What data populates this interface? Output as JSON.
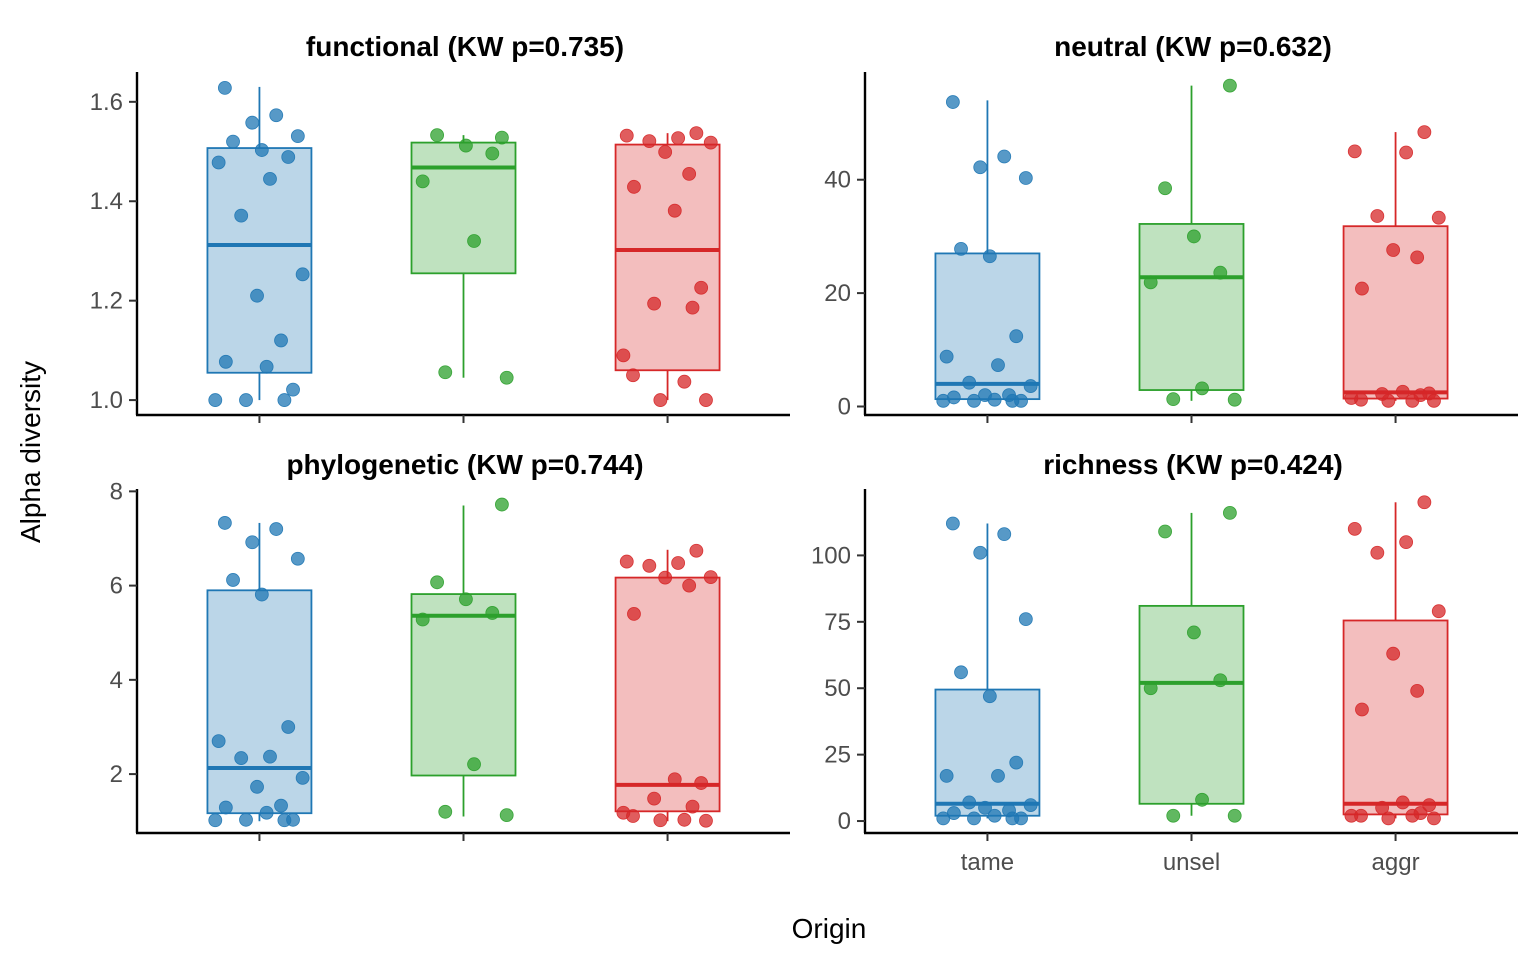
{
  "axis_titles": {
    "x": "Origin",
    "y": "Alpha diversity"
  },
  "colors": {
    "tame": "#1f77b4",
    "unsel": "#2ca02c",
    "aggr": "#d62728",
    "axis": "#000000",
    "tick_text": "#4d4d4d"
  },
  "chart_data": [
    {
      "type": "box",
      "title": "functional (KW p=0.735)",
      "categories": [
        "tame",
        "unsel",
        "aggr"
      ],
      "ylim": [
        0.97,
        1.66
      ],
      "yticks": [
        1.0,
        1.2,
        1.4,
        1.6
      ],
      "ytick_labels": [
        "1.0",
        "1.2",
        "1.4",
        "1.6"
      ],
      "show_x_labels": false,
      "boxes": [
        {
          "group": "tame",
          "min": 1.0,
          "q1": 1.055,
          "median": 1.312,
          "q3": 1.507,
          "max": 1.63
        },
        {
          "group": "unsel",
          "min": 1.045,
          "q1": 1.255,
          "median": 1.468,
          "q3": 1.518,
          "max": 1.533
        },
        {
          "group": "aggr",
          "min": 1.0,
          "q1": 1.06,
          "median": 1.302,
          "q3": 1.514,
          "max": 1.537
        }
      ],
      "points": [
        {
          "group": "tame",
          "values": [
            1.628,
            1.573,
            1.558,
            1.531,
            1.52,
            1.503,
            1.489,
            1.478,
            1.445,
            1.371,
            1.253,
            1.21,
            1.12,
            1.077,
            1.067,
            1.021,
            1.0,
            1.0,
            1.0
          ]
        },
        {
          "group": "unsel",
          "values": [
            1.528,
            1.533,
            1.512,
            1.496,
            1.44,
            1.32,
            1.056,
            1.045
          ]
        },
        {
          "group": "aggr",
          "values": [
            1.537,
            1.532,
            1.527,
            1.521,
            1.518,
            1.499,
            1.455,
            1.429,
            1.381,
            1.226,
            1.194,
            1.186,
            1.09,
            1.05,
            1.037,
            1.0,
            1.0
          ]
        }
      ]
    },
    {
      "type": "box",
      "title": "neutral (KW p=0.632)",
      "categories": [
        "tame",
        "unsel",
        "aggr"
      ],
      "ylim": [
        -1.5,
        59.0
      ],
      "yticks": [
        0,
        20,
        40
      ],
      "ytick_labels": [
        "0",
        "20",
        "40"
      ],
      "show_x_labels": false,
      "boxes": [
        {
          "group": "tame",
          "min": 1.0,
          "q1": 1.3,
          "median": 4.0,
          "q3": 27.0,
          "max": 54.0
        },
        {
          "group": "unsel",
          "min": 1.0,
          "q1": 2.9,
          "median": 22.8,
          "q3": 32.2,
          "max": 56.6
        },
        {
          "group": "aggr",
          "min": 1.0,
          "q1": 1.4,
          "median": 2.5,
          "q3": 31.8,
          "max": 48.4
        }
      ],
      "points": [
        {
          "group": "tame",
          "values": [
            53.7,
            44.1,
            42.2,
            40.3,
            27.8,
            26.5,
            12.4,
            8.8,
            7.3,
            4.2,
            3.6,
            2.0,
            2.0,
            1.6,
            1.2,
            1.0,
            1.0,
            1.0,
            1.0
          ]
        },
        {
          "group": "unsel",
          "values": [
            56.6,
            38.5,
            30.0,
            23.6,
            21.9,
            3.2,
            1.3,
            1.2
          ]
        },
        {
          "group": "aggr",
          "values": [
            48.4,
            45.0,
            44.8,
            33.6,
            33.3,
            27.6,
            26.3,
            20.8,
            2.6,
            2.3,
            2.2,
            2.0,
            1.5,
            1.2,
            1.0,
            1.0,
            1.0
          ]
        }
      ]
    },
    {
      "type": "box",
      "title": "phylogenetic (KW p=0.744)",
      "categories": [
        "tame",
        "unsel",
        "aggr"
      ],
      "ylim": [
        0.75,
        8.05
      ],
      "yticks": [
        2,
        4,
        6,
        8
      ],
      "ytick_labels": [
        "2",
        "4",
        "6",
        "8"
      ],
      "show_x_labels": false,
      "boxes": [
        {
          "group": "tame",
          "min": 1.0,
          "q1": 1.17,
          "median": 2.13,
          "q3": 5.9,
          "max": 7.33
        },
        {
          "group": "unsel",
          "min": 1.1,
          "q1": 1.97,
          "median": 5.36,
          "q3": 5.82,
          "max": 7.7
        },
        {
          "group": "aggr",
          "min": 1.0,
          "q1": 1.21,
          "median": 1.77,
          "q3": 6.17,
          "max": 6.76
        }
      ],
      "points": [
        {
          "group": "tame",
          "values": [
            7.33,
            7.2,
            6.92,
            6.57,
            6.12,
            5.81,
            3.0,
            2.7,
            2.37,
            2.34,
            1.92,
            1.73,
            1.33,
            1.29,
            1.18,
            1.03,
            1.03,
            1.02,
            1.02
          ]
        },
        {
          "group": "unsel",
          "values": [
            7.72,
            6.07,
            5.71,
            5.42,
            5.28,
            2.21,
            1.2,
            1.13
          ]
        },
        {
          "group": "aggr",
          "values": [
            6.74,
            6.51,
            6.48,
            6.42,
            6.18,
            6.17,
            6.0,
            5.4,
            1.89,
            1.81,
            1.48,
            1.31,
            1.18,
            1.11,
            1.03,
            1.02,
            1.01
          ]
        }
      ]
    },
    {
      "type": "box",
      "title": "richness (KW p=0.424)",
      "categories": [
        "tame",
        "unsel",
        "aggr"
      ],
      "ylim": [
        -4.5,
        125.0
      ],
      "yticks": [
        0,
        25,
        50,
        75,
        100
      ],
      "ytick_labels": [
        "0",
        "25",
        "50",
        "75",
        "100"
      ],
      "show_x_labels": true,
      "boxes": [
        {
          "group": "tame",
          "min": 1,
          "q1": 2,
          "median": 6.5,
          "q3": 49.5,
          "max": 112
        },
        {
          "group": "unsel",
          "min": 2,
          "q1": 6.5,
          "median": 52,
          "q3": 81,
          "max": 116
        },
        {
          "group": "aggr",
          "min": 1,
          "q1": 2.5,
          "median": 6.5,
          "q3": 75.5,
          "max": 120
        }
      ],
      "points": [
        {
          "group": "tame",
          "values": [
            112,
            108,
            101,
            76,
            56,
            47,
            22,
            17,
            17,
            7,
            6,
            5,
            4,
            3,
            2,
            1,
            1,
            1,
            1
          ]
        },
        {
          "group": "unsel",
          "values": [
            116,
            109,
            71,
            53,
            50,
            8,
            2,
            2
          ]
        },
        {
          "group": "aggr",
          "values": [
            120,
            110,
            105,
            101,
            79,
            63,
            49,
            42,
            7,
            6,
            5,
            3,
            2,
            2,
            2,
            1,
            1
          ]
        }
      ]
    }
  ]
}
